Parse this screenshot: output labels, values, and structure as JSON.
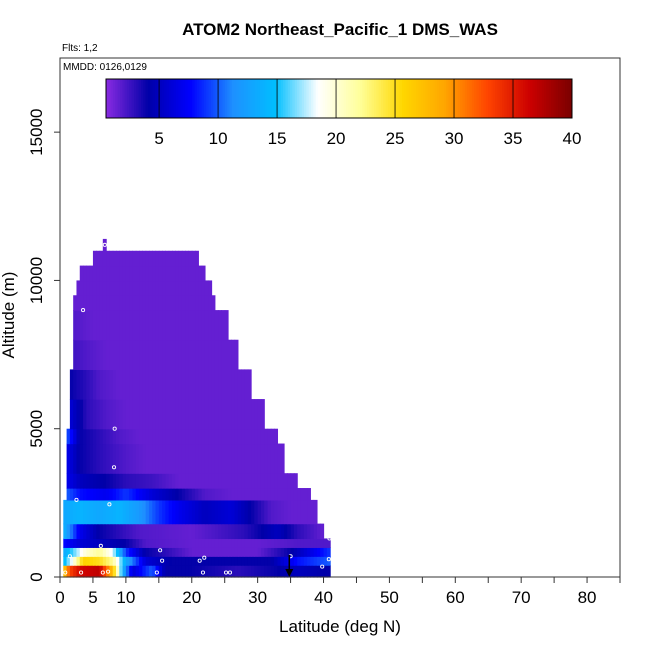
{
  "chart_data": {
    "type": "heatmap",
    "title": "ATOM2 Northeast_Pacific_1 DMS_WAS",
    "flights_label": "Flts: 1,2",
    "dates_label": "MMDD: 0126,0129",
    "xlabel": "Latitude (deg N)",
    "ylabel": "Altitude (m)",
    "xlim": [
      0,
      85
    ],
    "ylim": [
      0,
      17500
    ],
    "x_ticks": [
      0,
      5,
      10,
      20,
      30,
      40,
      50,
      60,
      70,
      80
    ],
    "x_tick_labels": [
      "0",
      "5",
      "10",
      "20",
      "30",
      "40",
      "50",
      "60",
      "70",
      "80"
    ],
    "y_ticks": [
      0,
      5000,
      10000,
      15000
    ],
    "y_tick_labels": [
      "0",
      "5000",
      "10000",
      "15000"
    ],
    "colorbar": {
      "range": [
        0.5,
        40
      ],
      "ticks": [
        5,
        10,
        15,
        20,
        25,
        30,
        35,
        40
      ],
      "tick_labels": [
        "5",
        "10",
        "15",
        "20",
        "25",
        "30",
        "35",
        "40"
      ],
      "colors": [
        "#8a2be2",
        "#0000a8",
        "#0000ff",
        "#1e90ff",
        "#00bfff",
        "#ffffff",
        "#ffff99",
        "#ffd700",
        "#ffa500",
        "#ff4500",
        "#cc0000",
        "#7a0000"
      ]
    },
    "bands": [
      {
        "alt": [
          0,
          400
        ],
        "lat": [
          0.5,
          41
        ],
        "stops": [
          {
            "lat": 0.5,
            "v": 26
          },
          {
            "lat": 1.5,
            "v": 33
          },
          {
            "lat": 3,
            "v": 36
          },
          {
            "lat": 6,
            "v": 37
          },
          {
            "lat": 8,
            "v": 27
          },
          {
            "lat": 9.5,
            "v": 14
          },
          {
            "lat": 11,
            "v": 6
          },
          {
            "lat": 14,
            "v": 10
          },
          {
            "lat": 16,
            "v": 4
          },
          {
            "lat": 20,
            "v": 4
          },
          {
            "lat": 27,
            "v": 3
          },
          {
            "lat": 33,
            "v": 4
          },
          {
            "lat": 36,
            "v": 5
          },
          {
            "lat": 41,
            "v": 4
          }
        ]
      },
      {
        "alt": [
          400,
          700
        ],
        "lat": [
          0.5,
          41
        ],
        "stops": [
          {
            "lat": 0.5,
            "v": 14
          },
          {
            "lat": 2,
            "v": 19
          },
          {
            "lat": 3.5,
            "v": 26
          },
          {
            "lat": 6,
            "v": 25
          },
          {
            "lat": 8,
            "v": 22
          },
          {
            "lat": 10,
            "v": 13
          },
          {
            "lat": 13,
            "v": 6
          },
          {
            "lat": 17,
            "v": 4
          },
          {
            "lat": 25,
            "v": 4
          },
          {
            "lat": 32,
            "v": 4
          },
          {
            "lat": 36,
            "v": 8
          },
          {
            "lat": 41,
            "v": 10
          }
        ]
      },
      {
        "alt": [
          700,
          1000
        ],
        "lat": [
          0.5,
          41
        ],
        "stops": [
          {
            "lat": 0.5,
            "v": 13
          },
          {
            "lat": 2,
            "v": 16
          },
          {
            "lat": 4,
            "v": 20
          },
          {
            "lat": 6,
            "v": 22
          },
          {
            "lat": 8,
            "v": 18
          },
          {
            "lat": 10,
            "v": 9
          },
          {
            "lat": 13,
            "v": 4
          },
          {
            "lat": 16,
            "v": 3
          },
          {
            "lat": 20,
            "v": 1.5
          },
          {
            "lat": 30,
            "v": 1.5
          },
          {
            "lat": 35,
            "v": 4
          },
          {
            "lat": 41,
            "v": 9
          }
        ]
      },
      {
        "alt": [
          1000,
          1300
        ],
        "lat": [
          0.5,
          41
        ],
        "stops": [
          {
            "lat": 0.5,
            "v": 8
          },
          {
            "lat": 3,
            "v": 6
          },
          {
            "lat": 6,
            "v": 5
          },
          {
            "lat": 10,
            "v": 4
          },
          {
            "lat": 13,
            "v": 2
          },
          {
            "lat": 20,
            "v": 1.5
          },
          {
            "lat": 30,
            "v": 1.5
          },
          {
            "lat": 36,
            "v": 2
          },
          {
            "lat": 41,
            "v": 2
          }
        ]
      },
      {
        "alt": [
          1300,
          1800
        ],
        "lat": [
          0.5,
          40
        ],
        "stops": [
          {
            "lat": 0.5,
            "v": 14
          },
          {
            "lat": 3,
            "v": 7
          },
          {
            "lat": 6,
            "v": 4
          },
          {
            "lat": 9,
            "v": 3
          },
          {
            "lat": 12,
            "v": 2
          },
          {
            "lat": 20,
            "v": 1.5
          },
          {
            "lat": 28,
            "v": 3
          },
          {
            "lat": 33,
            "v": 5
          },
          {
            "lat": 36,
            "v": 3
          },
          {
            "lat": 40,
            "v": 1.5
          }
        ]
      },
      {
        "alt": [
          1800,
          2600
        ],
        "lat": [
          0.5,
          39
        ],
        "stops": [
          {
            "lat": 0.5,
            "v": 13
          },
          {
            "lat": 3,
            "v": 14
          },
          {
            "lat": 6,
            "v": 13
          },
          {
            "lat": 9,
            "v": 14
          },
          {
            "lat": 12,
            "v": 12
          },
          {
            "lat": 15,
            "v": 9
          },
          {
            "lat": 18,
            "v": 7
          },
          {
            "lat": 22,
            "v": 5
          },
          {
            "lat": 26,
            "v": 6
          },
          {
            "lat": 29,
            "v": 4
          },
          {
            "lat": 32,
            "v": 2
          },
          {
            "lat": 35,
            "v": 1.5
          },
          {
            "lat": 39,
            "v": 1.5
          }
        ]
      },
      {
        "alt": [
          2600,
          3000
        ],
        "lat": [
          1,
          38
        ],
        "stops": [
          {
            "lat": 1,
            "v": 10
          },
          {
            "lat": 3,
            "v": 8
          },
          {
            "lat": 7,
            "v": 7
          },
          {
            "lat": 10,
            "v": 9
          },
          {
            "lat": 14,
            "v": 6
          },
          {
            "lat": 18,
            "v": 4
          },
          {
            "lat": 22,
            "v": 2
          },
          {
            "lat": 26,
            "v": 1.5
          },
          {
            "lat": 38,
            "v": 1.5
          }
        ]
      },
      {
        "alt": [
          3000,
          3500
        ],
        "lat": [
          1,
          36
        ],
        "stops": [
          {
            "lat": 1,
            "v": 7
          },
          {
            "lat": 3,
            "v": 5
          },
          {
            "lat": 7,
            "v": 4
          },
          {
            "lat": 10,
            "v": 3
          },
          {
            "lat": 14,
            "v": 2.5
          },
          {
            "lat": 18,
            "v": 1.5
          },
          {
            "lat": 36,
            "v": 1.5
          }
        ]
      },
      {
        "alt": [
          3500,
          4500
        ],
        "lat": [
          1,
          34
        ],
        "stops": [
          {
            "lat": 1,
            "v": 7
          },
          {
            "lat": 3,
            "v": 4
          },
          {
            "lat": 6,
            "v": 3
          },
          {
            "lat": 10,
            "v": 2
          },
          {
            "lat": 13,
            "v": 1.5
          },
          {
            "lat": 34,
            "v": 1.5
          }
        ]
      },
      {
        "alt": [
          4500,
          5000
        ],
        "lat": [
          1,
          33
        ],
        "stops": [
          {
            "lat": 1,
            "v": 10
          },
          {
            "lat": 3,
            "v": 4
          },
          {
            "lat": 6,
            "v": 3
          },
          {
            "lat": 9,
            "v": 2
          },
          {
            "lat": 12,
            "v": 1.5
          },
          {
            "lat": 33,
            "v": 1.5
          }
        ]
      },
      {
        "alt": [
          5000,
          6000
        ],
        "lat": [
          1.5,
          31
        ],
        "stops": [
          {
            "lat": 1.5,
            "v": 6
          },
          {
            "lat": 4,
            "v": 3
          },
          {
            "lat": 7,
            "v": 2
          },
          {
            "lat": 10,
            "v": 1.5
          },
          {
            "lat": 31,
            "v": 1.5
          }
        ]
      },
      {
        "alt": [
          6000,
          7000
        ],
        "lat": [
          1.5,
          29
        ],
        "stops": [
          {
            "lat": 1.5,
            "v": 4
          },
          {
            "lat": 4,
            "v": 3
          },
          {
            "lat": 6,
            "v": 2
          },
          {
            "lat": 9,
            "v": 1.5
          },
          {
            "lat": 29,
            "v": 1.5
          }
        ]
      },
      {
        "alt": [
          7000,
          8000
        ],
        "lat": [
          2,
          27
        ],
        "stops": [
          {
            "lat": 2,
            "v": 2.5
          },
          {
            "lat": 4,
            "v": 2
          },
          {
            "lat": 7,
            "v": 1.5
          },
          {
            "lat": 27,
            "v": 1.5
          }
        ]
      },
      {
        "alt": [
          8000,
          9000
        ],
        "lat": [
          2,
          25.5
        ],
        "stops": [
          {
            "lat": 2,
            "v": 2
          },
          {
            "lat": 5,
            "v": 1.5
          },
          {
            "lat": 25.5,
            "v": 1.5
          }
        ]
      },
      {
        "alt": [
          9000,
          9500
        ],
        "lat": [
          2,
          23.5
        ],
        "stops": [
          {
            "lat": 2,
            "v": 1.5
          },
          {
            "lat": 23.5,
            "v": 1.5
          }
        ]
      },
      {
        "alt": [
          9500,
          10000
        ],
        "lat": [
          2.5,
          23
        ],
        "stops": [
          {
            "lat": 2.5,
            "v": 1.5
          },
          {
            "lat": 23,
            "v": 1.5
          }
        ]
      },
      {
        "alt": [
          10000,
          10500
        ],
        "lat": [
          3,
          22
        ],
        "stops": [
          {
            "lat": 3,
            "v": 1.5
          },
          {
            "lat": 22,
            "v": 1.5
          }
        ]
      },
      {
        "alt": [
          10500,
          11000
        ],
        "lat": [
          5,
          21
        ],
        "stops": [
          {
            "lat": 5,
            "v": 1.5
          },
          {
            "lat": 21,
            "v": 1.5
          }
        ]
      },
      {
        "alt": [
          11000,
          11400
        ],
        "lat": [
          6.5,
          7
        ],
        "stops": [
          {
            "lat": 6.5,
            "v": 1.5
          },
          {
            "lat": 7,
            "v": 1.5
          }
        ]
      }
    ],
    "sample_points": [
      {
        "lat": 0.8,
        "alt": 150
      },
      {
        "lat": 1.5,
        "alt": 700
      },
      {
        "lat": 3.2,
        "alt": 150
      },
      {
        "lat": 3.5,
        "alt": 9000
      },
      {
        "lat": 6.5,
        "alt": 150
      },
      {
        "lat": 7.3,
        "alt": 180
      },
      {
        "lat": 7.5,
        "alt": 2450
      },
      {
        "lat": 8.2,
        "alt": 3700
      },
      {
        "lat": 8.3,
        "alt": 5000
      },
      {
        "lat": 6.8,
        "alt": 11200
      },
      {
        "lat": 14.7,
        "alt": 150
      },
      {
        "lat": 15.2,
        "alt": 900
      },
      {
        "lat": 15.5,
        "alt": 550
      },
      {
        "lat": 21.2,
        "alt": 550
      },
      {
        "lat": 21.7,
        "alt": 150
      },
      {
        "lat": 21.8,
        "alt": 10600
      },
      {
        "lat": 21.9,
        "alt": 650
      },
      {
        "lat": 25.2,
        "alt": 150
      },
      {
        "lat": 25.8,
        "alt": 150
      },
      {
        "lat": 35,
        "alt": 700
      },
      {
        "lat": 39.8,
        "alt": 350
      },
      {
        "lat": 40.8,
        "alt": 600
      },
      {
        "lat": 40.9,
        "alt": 1300
      },
      {
        "lat": 2.5,
        "alt": 2600
      },
      {
        "lat": 6.2,
        "alt": 1050
      }
    ],
    "marker": {
      "lat": 34.8,
      "alt": 0
    }
  }
}
